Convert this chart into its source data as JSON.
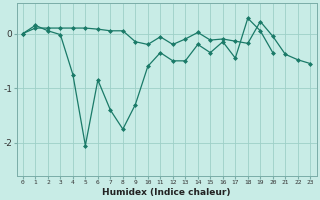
{
  "xlabel": "Humidex (Indice chaleur)",
  "x_all": [
    0,
    1,
    2,
    3,
    4,
    5,
    6,
    7,
    8,
    9,
    10,
    11,
    12,
    13,
    14,
    15,
    16,
    17,
    18,
    19,
    20,
    21,
    22,
    23
  ],
  "line1_x": [
    0,
    1,
    2,
    3,
    4,
    5,
    6,
    7,
    8,
    9,
    10,
    11,
    12,
    13,
    14,
    15,
    16,
    17,
    18,
    19,
    20
  ],
  "line1_y": [
    0.0,
    0.15,
    0.05,
    -0.02,
    -0.75,
    -2.05,
    -0.85,
    -1.4,
    -1.75,
    -1.3,
    -0.6,
    -0.35,
    -0.5,
    -0.5,
    -0.2,
    -0.35,
    -0.15,
    -0.45,
    0.28,
    0.05,
    -0.35
  ],
  "line2_x": [
    0,
    1,
    2,
    3,
    4,
    5,
    6,
    7,
    8,
    9,
    10,
    11,
    12,
    13,
    14,
    15,
    16,
    17,
    18,
    19,
    20,
    21,
    22,
    23
  ],
  "line2_y": [
    0.0,
    0.1,
    0.1,
    0.1,
    0.1,
    0.1,
    0.08,
    0.05,
    0.05,
    -0.15,
    -0.2,
    -0.06,
    -0.2,
    -0.1,
    0.02,
    -0.12,
    -0.1,
    -0.14,
    -0.18,
    0.22,
    -0.05,
    -0.38,
    -0.48,
    -0.55
  ],
  "line_color": "#1a7a68",
  "bg_color": "#c8ece6",
  "grid_color": "#9dd0c8",
  "ylim": [
    -2.6,
    0.55
  ],
  "yticks": [
    -2,
    -1,
    0
  ],
  "figsize": [
    3.2,
    2.0
  ],
  "dpi": 100
}
